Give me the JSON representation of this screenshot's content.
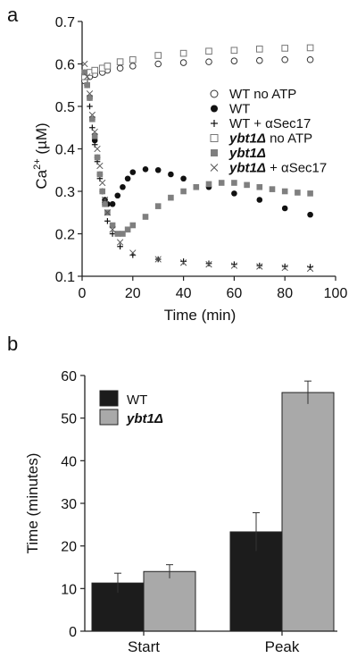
{
  "panels": [
    {
      "letter": "a",
      "chart_data": {
        "type": "scatter",
        "xlabel": "Time (min)",
        "ylabel_main": "Ca",
        "ylabel_sup": "2+",
        "ylabel_unit": " (µM)",
        "xlim": [
          0,
          100
        ],
        "ylim": [
          0.1,
          0.7
        ],
        "xticks": [
          "0",
          "20",
          "40",
          "60",
          "80",
          "100"
        ],
        "yticks": [
          "0.1",
          "0.2",
          "0.3",
          "0.4",
          "0.5",
          "0.6",
          "0.7"
        ],
        "legend_position": "right",
        "series": [
          {
            "name": "WT no ATP",
            "marker": "open-circle",
            "color": "#333333",
            "points": [
              [
                1,
                0.56
              ],
              [
                3,
                0.57
              ],
              [
                5,
                0.575
              ],
              [
                8,
                0.58
              ],
              [
                10,
                0.585
              ],
              [
                15,
                0.59
              ],
              [
                20,
                0.595
              ],
              [
                30,
                0.6
              ],
              [
                40,
                0.603
              ],
              [
                50,
                0.605
              ],
              [
                60,
                0.607
              ],
              [
                70,
                0.608
              ],
              [
                80,
                0.61
              ],
              [
                90,
                0.61
              ]
            ]
          },
          {
            "name": "WT",
            "marker": "filled-circle",
            "color": "#111111",
            "points": [
              [
                1,
                0.58
              ],
              [
                2,
                0.55
              ],
              [
                3,
                0.52
              ],
              [
                4,
                0.47
              ],
              [
                5,
                0.42
              ],
              [
                6,
                0.38
              ],
              [
                7,
                0.34
              ],
              [
                8,
                0.3
              ],
              [
                9,
                0.28
              ],
              [
                10,
                0.27
              ],
              [
                12,
                0.27
              ],
              [
                14,
                0.29
              ],
              [
                16,
                0.31
              ],
              [
                18,
                0.33
              ],
              [
                20,
                0.345
              ],
              [
                25,
                0.352
              ],
              [
                30,
                0.35
              ],
              [
                35,
                0.34
              ],
              [
                40,
                0.33
              ],
              [
                50,
                0.31
              ],
              [
                60,
                0.295
              ],
              [
                70,
                0.28
              ],
              [
                80,
                0.26
              ],
              [
                90,
                0.245
              ]
            ]
          },
          {
            "name": "WT + αSec17",
            "marker": "plus",
            "color": "#111111",
            "points": [
              [
                1,
                0.58
              ],
              [
                2,
                0.55
              ],
              [
                3,
                0.5
              ],
              [
                4,
                0.45
              ],
              [
                5,
                0.41
              ],
              [
                6,
                0.37
              ],
              [
                7,
                0.33
              ],
              [
                8,
                0.3
              ],
              [
                9,
                0.27
              ],
              [
                10,
                0.23
              ],
              [
                12,
                0.2
              ],
              [
                15,
                0.17
              ],
              [
                20,
                0.15
              ],
              [
                30,
                0.14
              ],
              [
                40,
                0.135
              ],
              [
                50,
                0.13
              ],
              [
                60,
                0.128
              ],
              [
                70,
                0.125
              ],
              [
                80,
                0.123
              ],
              [
                90,
                0.122
              ]
            ]
          },
          {
            "name": "ybt1Δ no ATP",
            "marker": "open-square",
            "color": "#777777",
            "points": [
              [
                1,
                0.57
              ],
              [
                3,
                0.58
              ],
              [
                5,
                0.585
              ],
              [
                8,
                0.59
              ],
              [
                10,
                0.595
              ],
              [
                15,
                0.605
              ],
              [
                20,
                0.61
              ],
              [
                30,
                0.62
              ],
              [
                40,
                0.625
              ],
              [
                50,
                0.63
              ],
              [
                60,
                0.632
              ],
              [
                70,
                0.635
              ],
              [
                80,
                0.637
              ],
              [
                90,
                0.638
              ]
            ]
          },
          {
            "name": "ybt1Δ",
            "marker": "filled-square",
            "color": "#7f7f7f",
            "points": [
              [
                1,
                0.58
              ],
              [
                2,
                0.55
              ],
              [
                3,
                0.52
              ],
              [
                4,
                0.47
              ],
              [
                5,
                0.43
              ],
              [
                6,
                0.38
              ],
              [
                7,
                0.34
              ],
              [
                8,
                0.3
              ],
              [
                9,
                0.27
              ],
              [
                10,
                0.25
              ],
              [
                12,
                0.22
              ],
              [
                14,
                0.2
              ],
              [
                16,
                0.2
              ],
              [
                18,
                0.21
              ],
              [
                20,
                0.22
              ],
              [
                25,
                0.24
              ],
              [
                30,
                0.265
              ],
              [
                35,
                0.285
              ],
              [
                40,
                0.3
              ],
              [
                45,
                0.31
              ],
              [
                50,
                0.317
              ],
              [
                55,
                0.32
              ],
              [
                60,
                0.32
              ],
              [
                65,
                0.315
              ],
              [
                70,
                0.31
              ],
              [
                75,
                0.305
              ],
              [
                80,
                0.3
              ],
              [
                85,
                0.297
              ],
              [
                90,
                0.295
              ]
            ]
          },
          {
            "name": "ybt1Δ + αSec17",
            "marker": "cross",
            "color": "#555555",
            "points": [
              [
                1,
                0.6
              ],
              [
                2,
                0.57
              ],
              [
                3,
                0.53
              ],
              [
                4,
                0.48
              ],
              [
                5,
                0.44
              ],
              [
                6,
                0.4
              ],
              [
                7,
                0.36
              ],
              [
                8,
                0.32
              ],
              [
                9,
                0.28
              ],
              [
                10,
                0.25
              ],
              [
                12,
                0.21
              ],
              [
                15,
                0.18
              ],
              [
                20,
                0.155
              ],
              [
                30,
                0.14
              ],
              [
                40,
                0.132
              ],
              [
                50,
                0.128
              ],
              [
                60,
                0.125
              ],
              [
                70,
                0.123
              ],
              [
                80,
                0.12
              ],
              [
                90,
                0.118
              ]
            ]
          }
        ]
      }
    },
    {
      "letter": "b",
      "chart_data": {
        "type": "bar",
        "ylabel": "Time (minutes)",
        "ylim": [
          0,
          60
        ],
        "yticks": [
          "0",
          "10",
          "20",
          "30",
          "40",
          "50",
          "60"
        ],
        "categories": [
          "Start",
          "Peak"
        ],
        "legend_position": "top-left",
        "series": [
          {
            "name": "WT",
            "color": "#1c1c1c",
            "values": [
              11.3,
              23.3
            ],
            "errors": [
              2.3,
              4.5
            ]
          },
          {
            "name": "ybt1Δ",
            "color": "#a9a9a9",
            "values": [
              14,
              56
            ],
            "errors": [
              1.6,
              2.7
            ]
          }
        ]
      }
    }
  ]
}
